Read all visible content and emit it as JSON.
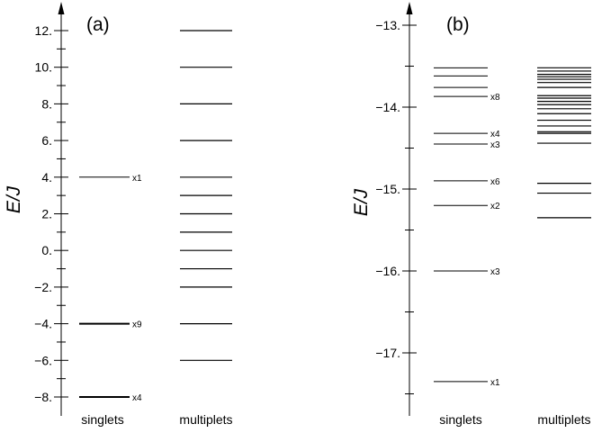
{
  "chart_data": [
    {
      "type": "level-diagram",
      "panel_label": "(a)",
      "ylabel": "E/J",
      "ylim": [
        -8.9,
        12.9
      ],
      "major_ticks": [
        -8,
        -6,
        -4,
        -2,
        0,
        2,
        4,
        6,
        8,
        10,
        12
      ],
      "tick_labels": [
        "−8.",
        "−6.",
        "−4.",
        "−2.",
        "0.",
        "2.",
        "4.",
        "6.",
        "8.",
        "10.",
        "12."
      ],
      "minor_ticks": [
        -7,
        -5,
        -3,
        -1,
        1,
        3,
        5,
        7,
        9,
        11
      ],
      "columns": [
        "singlets",
        "multiplets"
      ],
      "singlets": [
        {
          "E": 4,
          "degeneracy": "x1",
          "weight": 1
        },
        {
          "E": -4,
          "degeneracy": "x9",
          "weight": 2
        },
        {
          "E": -8,
          "degeneracy": "x4",
          "weight": 2
        }
      ],
      "multiplets": [
        12,
        10,
        8,
        6,
        4,
        3,
        2,
        1,
        0,
        -1,
        -2,
        -4,
        -6
      ]
    },
    {
      "type": "level-diagram",
      "panel_label": "(b)",
      "ylabel": "E/J",
      "ylim": [
        -17.75,
        -12.9
      ],
      "major_ticks": [
        -17,
        -16,
        -15,
        -14,
        -13
      ],
      "tick_labels": [
        "−17.",
        "−16.",
        "−15.",
        "−14.",
        "−13."
      ],
      "minor_ticks": [
        -17.5,
        -16.5,
        -15.5,
        -14.5,
        -13.5
      ],
      "columns": [
        "singlets",
        "multiplets"
      ],
      "singlets": [
        {
          "E": -13.52,
          "degeneracy": "",
          "weight": 1
        },
        {
          "E": -13.62,
          "degeneracy": "",
          "weight": 1
        },
        {
          "E": -13.76,
          "degeneracy": "",
          "weight": 1
        },
        {
          "E": -13.87,
          "degeneracy": "x8",
          "weight": 1
        },
        {
          "E": -14.32,
          "degeneracy": "x4",
          "weight": 1
        },
        {
          "E": -14.45,
          "degeneracy": "x3",
          "weight": 1
        },
        {
          "E": -14.9,
          "degeneracy": "x6",
          "weight": 1
        },
        {
          "E": -15.2,
          "degeneracy": "x2",
          "weight": 1
        },
        {
          "E": -16.0,
          "degeneracy": "x3",
          "weight": 1
        },
        {
          "E": -17.35,
          "degeneracy": "x1",
          "weight": 1
        }
      ],
      "multiplets": [
        -13.52,
        -13.56,
        -13.6,
        -13.63,
        -13.66,
        -13.7,
        -13.76,
        -13.86,
        -13.89,
        -13.93,
        -13.97,
        -14.02,
        -14.08,
        -14.16,
        -14.23,
        -14.3,
        -14.32,
        -14.44,
        -14.93,
        -15.05,
        -15.35
      ]
    }
  ]
}
